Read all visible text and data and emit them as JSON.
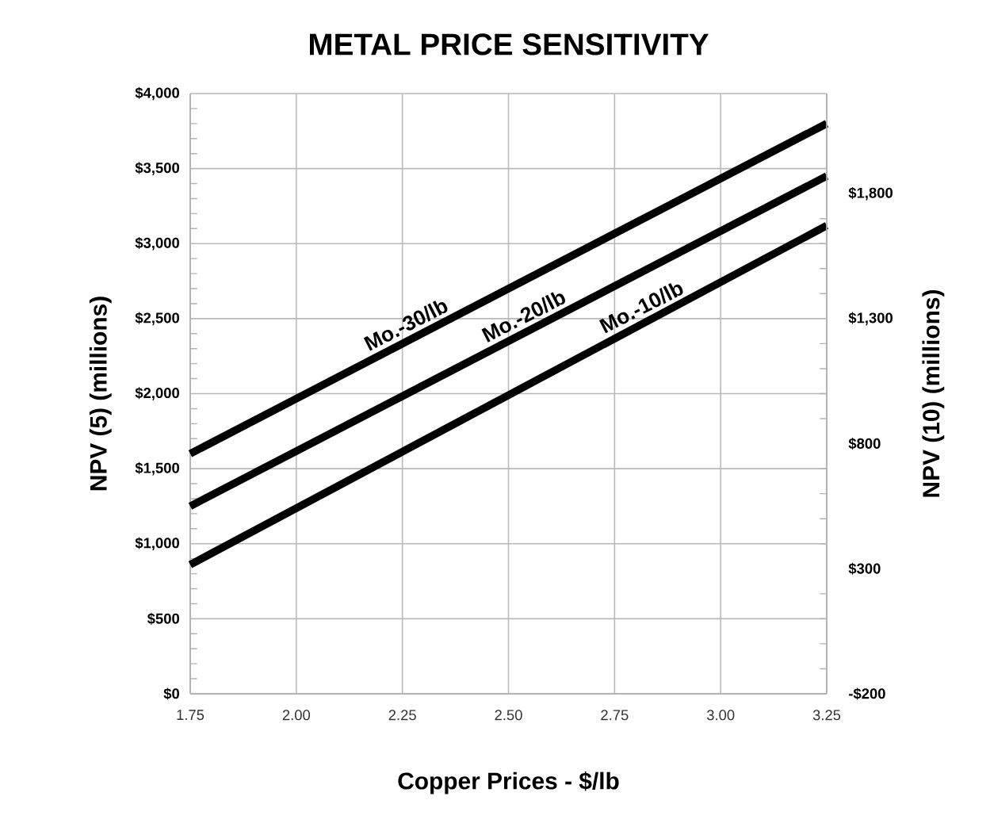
{
  "chart_data": {
    "type": "line",
    "title": "METAL PRICE SENSITIVITY",
    "xlabel": "Copper Prices - $/lb",
    "ylabel": "NPV (5) (millions)",
    "y2label": "NPV (10) (millions)",
    "x": [
      1.75,
      3.25
    ],
    "series": [
      {
        "name": "Mo.-30/lb",
        "color": "#000000",
        "values": [
          1600,
          3800
        ]
      },
      {
        "name": "Mo.-20/lb",
        "color": "#000000",
        "values": [
          1250,
          3450
        ]
      },
      {
        "name": "Mo.-10/lb",
        "color": "#000000",
        "values": [
          860,
          3120
        ]
      }
    ],
    "xlim": [
      1.75,
      3.25
    ],
    "xticks": [
      {
        "value": 1.75,
        "label": "1.75"
      },
      {
        "value": 2.0,
        "label": "2.00"
      },
      {
        "value": 2.25,
        "label": "2.25"
      },
      {
        "value": 2.5,
        "label": "2.50"
      },
      {
        "value": 2.75,
        "label": "2.75"
      },
      {
        "value": 3.0,
        "label": "3.00"
      },
      {
        "value": 3.25,
        "label": "3.25"
      }
    ],
    "ylim": [
      0,
      4000
    ],
    "yticks": [
      {
        "value": 0,
        "label": "$0"
      },
      {
        "value": 500,
        "label": "$500"
      },
      {
        "value": 1000,
        "label": "$1,000"
      },
      {
        "value": 1500,
        "label": "$1,500"
      },
      {
        "value": 2000,
        "label": "$2,000"
      },
      {
        "value": 2500,
        "label": "$2,500"
      },
      {
        "value": 3000,
        "label": "$3,000"
      },
      {
        "value": 3500,
        "label": "$3,500"
      },
      {
        "value": 4000,
        "label": "$4,000"
      }
    ],
    "y2lim": [
      -200,
      2200
    ],
    "y2ticks": [
      {
        "value": -200,
        "label": "-$200"
      },
      {
        "value": 300,
        "label": "$300"
      },
      {
        "value": 800,
        "label": "$800"
      },
      {
        "value": 1300,
        "label": "$1,300"
      },
      {
        "value": 1800,
        "label": "$1,800"
      }
    ],
    "grid": true,
    "marker": "none",
    "line_style": "solid"
  }
}
